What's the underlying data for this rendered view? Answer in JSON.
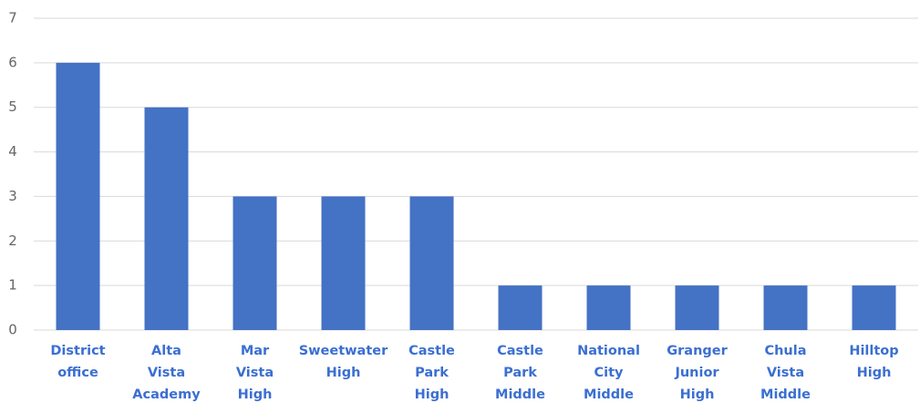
{
  "chart_data": {
    "type": "bar",
    "categories": [
      "District office",
      "Alta Vista Academy",
      "Mar Vista High",
      "Sweetwater High",
      "Castle Park High",
      "Castle Park Middle",
      "National City Middle",
      "Granger Junior High",
      "Chula Vista Middle",
      "Hilltop High"
    ],
    "values": [
      6,
      5,
      3,
      3,
      3,
      1,
      1,
      1,
      1,
      1
    ],
    "color": "#4472c4",
    "ylim": [
      0,
      7
    ],
    "yticks": [
      0,
      1,
      2,
      3,
      4,
      5,
      6,
      7
    ],
    "grid": true
  }
}
